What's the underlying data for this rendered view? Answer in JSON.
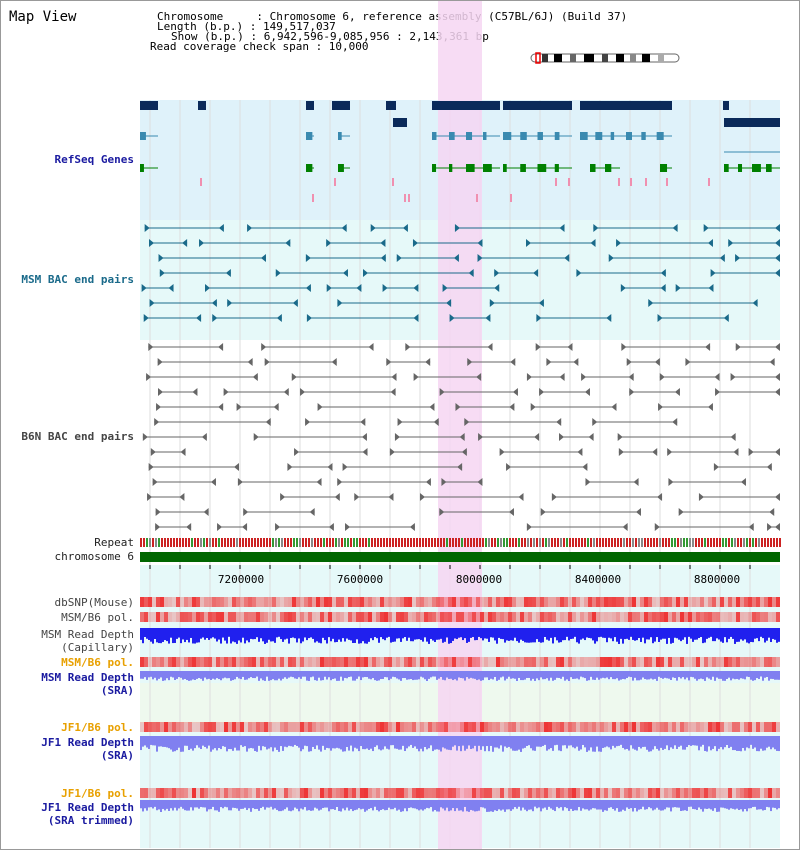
{
  "view_title": "Map View",
  "info": {
    "chromosome": "Chromosome     : Chromosome 6, reference assembly (C57BL/6J) (Build 37)",
    "length": "Length (b.p.) : 149,517,037",
    "show": "Show (b.p.) : 6,942,596-9,085,956 : 2,143,361 bp",
    "coverage": "Read coverage check span : 10,000"
  },
  "tracks": {
    "refseq": "RefSeq Genes",
    "msm_bac": "MSM BAC end pairs",
    "b6n_bac": "B6N BAC end pairs",
    "repeat": "Repeat",
    "chromosome": "chromosome 6",
    "dbsnp": "dbSNP(Mouse)",
    "msm_b6_pol_1": "MSM/B6 pol.",
    "msm_read_depth_cap_1": "MSM Read Depth",
    "msm_read_depth_cap_2": "(Capillary)",
    "msm_b6_pol_2": "MSM/B6 pol.",
    "msm_read_depth_sra_1": "MSM Read Depth",
    "msm_read_depth_sra_2": "(SRA)",
    "jf1_b6_pol_1": "JF1/B6 pol.",
    "jf1_read_depth_sra_1": "JF1 Read Depth",
    "jf1_read_depth_sra_2": "(SRA)",
    "jf1_b6_pol_2": "JF1/B6 pol.",
    "jf1_read_depth_trim_1": "JF1 Read Depth",
    "jf1_read_depth_trim_2": "(SRA trimmed)"
  },
  "axis_ticks": [
    "7200000",
    "7600000",
    "8000000",
    "8400000",
    "8800000"
  ],
  "colors": {
    "refseq_bg": "#dff2fa",
    "msm_bg": "#e6f9f9",
    "highlight": "#f6d6f2",
    "navy": "#0a2a5a",
    "teal": "#3a8ab0",
    "green": "#008000",
    "msm_pair": "#1a6a8a",
    "b6n_pair": "#666666",
    "repeat_red": "#cc2222",
    "chrom_green": "#006600",
    "depth_blue": "#2020ee",
    "depth_light": "#8080f0",
    "pol_red": "#ee3333"
  }
}
